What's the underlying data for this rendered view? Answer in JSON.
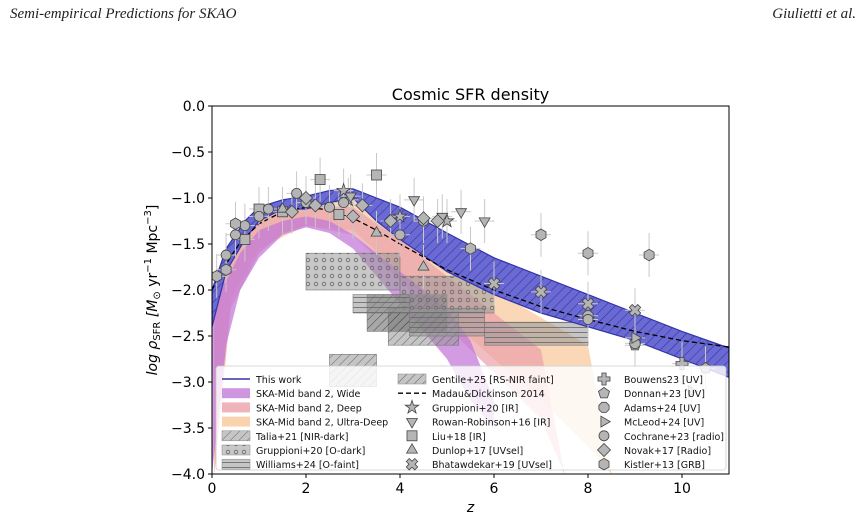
{
  "header": {
    "left": "Semi-empirical Predictions for SKAO",
    "right": "Giulietti et al."
  },
  "chart_data": {
    "type": "scatter",
    "title": "Cosmic SFR density",
    "xlabel": "z",
    "ylabel_parts": [
      "log ρ",
      "SFR",
      " [M",
      "⊙",
      " yr",
      "−1",
      " Mpc",
      "−3",
      "]"
    ],
    "xlim": [
      0,
      11
    ],
    "ylim": [
      -4.0,
      0.0
    ],
    "xticks": [
      0,
      2,
      4,
      6,
      8,
      10
    ],
    "yticks": [
      0.0,
      -0.5,
      -1.0,
      -1.5,
      -2.0,
      -2.5,
      -3.0,
      -3.5,
      -4.0
    ],
    "ytick_labels": [
      "0.0",
      "−0.5",
      "−1.0",
      "−1.5",
      "−2.0",
      "−2.5",
      "−3.0",
      "−3.5",
      "−4.0"
    ],
    "colors": {
      "this_work": "#3333aa",
      "this_work_fill": "#6a6ad2",
      "wide": "#c37ad8",
      "deep": "#eba0a8",
      "ultra": "#f8c898",
      "marker_fill": "#b5b5b5",
      "marker_edge": "#444444",
      "errbar": "#c8c8c8"
    },
    "this_work_band": {
      "x": [
        0,
        0.3,
        0.7,
        1.0,
        1.5,
        2.0,
        2.5,
        3.0,
        3.5,
        4.0,
        5.0,
        6.0,
        7.0,
        8.0,
        9.0,
        10.0,
        11.0
      ],
      "upper": [
        -2.0,
        -1.55,
        -1.25,
        -1.1,
        -1.02,
        -0.98,
        -0.92,
        -0.9,
        -1.0,
        -1.1,
        -1.38,
        -1.65,
        -1.85,
        -2.05,
        -2.25,
        -2.45,
        -2.63
      ],
      "lower": [
        -2.4,
        -1.8,
        -1.45,
        -1.25,
        -1.12,
        -1.12,
        -1.05,
        -1.0,
        -1.25,
        -1.45,
        -1.8,
        -2.05,
        -2.25,
        -2.4,
        -2.55,
        -2.75,
        -2.95
      ]
    },
    "wide_band": {
      "x": [
        0.0,
        0.3,
        0.6,
        1.0,
        1.5,
        2.0,
        2.5,
        3.0,
        4.0,
        5.0,
        5.5,
        6.0
      ],
      "upper": [
        -2.05,
        -1.9,
        -1.6,
        -1.35,
        -1.25,
        -1.2,
        -1.25,
        -1.4,
        -1.8,
        -2.2,
        -2.55,
        -3.2
      ],
      "lower": [
        -4.0,
        -2.6,
        -2.0,
        -1.65,
        -1.4,
        -1.32,
        -1.38,
        -1.55,
        -2.15,
        -2.75,
        -3.2,
        -3.5
      ]
    },
    "deep_band": {
      "x": [
        0.05,
        0.4,
        1.0,
        1.5,
        2.0,
        3.0,
        4.0,
        5.0,
        6.0,
        7.0,
        7.5
      ],
      "upper": [
        -1.9,
        -1.55,
        -1.2,
        -1.1,
        -1.08,
        -1.1,
        -1.45,
        -1.85,
        -2.25,
        -2.65,
        -4.0
      ],
      "lower": [
        -4.0,
        -2.2,
        -1.6,
        -1.38,
        -1.3,
        -1.4,
        -1.9,
        -2.4,
        -2.9,
        -3.4,
        -4.0
      ]
    },
    "ultra_band": {
      "x": [
        0.05,
        0.4,
        1.0,
        2.0,
        3.0,
        4.0,
        5.0,
        6.0,
        7.0,
        8.0,
        8.5
      ],
      "upper": [
        -1.85,
        -1.5,
        -1.15,
        -1.0,
        -1.0,
        -1.3,
        -1.65,
        -2.0,
        -2.3,
        -2.6,
        -4.0
      ],
      "lower": [
        -4.0,
        -2.1,
        -1.55,
        -1.3,
        -1.35,
        -1.8,
        -2.3,
        -2.75,
        -3.2,
        -3.7,
        -4.0
      ]
    },
    "madau_curve": {
      "x": [
        0,
        0.3,
        0.6,
        1.0,
        1.5,
        2.0,
        2.5,
        3.0,
        3.5,
        4.0,
        5.0,
        6.0,
        7.0,
        8.0,
        9.0,
        10.0,
        11.0
      ],
      "y": [
        -2.0,
        -1.72,
        -1.48,
        -1.28,
        -1.15,
        -1.1,
        -1.13,
        -1.22,
        -1.35,
        -1.5,
        -1.78,
        -2.0,
        -2.18,
        -2.32,
        -2.45,
        -2.55,
        -2.62
      ]
    },
    "rects": [
      {
        "series": "Gentile+25 [RS-NIR faint]",
        "x0": 3.75,
        "x1": 5.25,
        "y0": -2.2,
        "y1": -2.6,
        "style": "hatch-diag"
      },
      {
        "series": "Talia+21 [NIR-dark]",
        "x0": 2.5,
        "x1": 3.5,
        "y0": -2.7,
        "y1": -3.05,
        "style": "hatch-diag"
      },
      {
        "series": "Talia+21 [NIR-dark]",
        "x0": 3.3,
        "x1": 5.0,
        "y0": -2.05,
        "y1": -2.45,
        "style": "hatch-diag-dark"
      },
      {
        "series": "Gruppioni+20 [O-dark]",
        "x0": 2.0,
        "x1": 4.0,
        "y0": -1.6,
        "y1": -2.0,
        "style": "dots"
      },
      {
        "series": "Gruppioni+20 [O-dark]",
        "x0": 4.0,
        "x1": 6.0,
        "y0": -1.85,
        "y1": -2.25,
        "style": "dots"
      },
      {
        "series": "Williams+24 [O-faint]",
        "x0": 3.0,
        "x1": 4.2,
        "y0": -2.05,
        "y1": -2.25,
        "style": "hlines"
      },
      {
        "series": "Williams+24 [O-faint]",
        "x0": 4.2,
        "x1": 5.8,
        "y0": -2.2,
        "y1": -2.5,
        "style": "hlines"
      },
      {
        "series": "Williams+24 [O-faint]",
        "x0": 5.8,
        "x1": 8.0,
        "y0": -2.35,
        "y1": -2.6,
        "style": "hlines"
      }
    ],
    "points": [
      {
        "series": "Gruppioni+20 [IR]",
        "m": "star",
        "pts": [
          [
            2.8,
            -0.92
          ],
          [
            4.0,
            -1.2
          ],
          [
            2.9,
            -1.02
          ],
          [
            5.0,
            -1.25
          ]
        ]
      },
      {
        "series": "Rowan-Robinson+16 [IR]",
        "m": "tri-down",
        "pts": [
          [
            4.3,
            -1.02
          ],
          [
            4.9,
            -1.2
          ],
          [
            5.3,
            -1.15
          ],
          [
            5.8,
            -1.25
          ],
          [
            2.95,
            -0.98
          ]
        ]
      },
      {
        "series": "Liu+18 [IR]",
        "m": "square",
        "pts": [
          [
            2.3,
            -0.8
          ],
          [
            3.5,
            -0.75
          ],
          [
            0.7,
            -1.45
          ],
          [
            1.5,
            -1.15
          ],
          [
            1.0,
            -1.12
          ],
          [
            2.7,
            -1.18
          ]
        ]
      },
      {
        "series": "Dunlop+17 [UVsel]",
        "m": "tri-up",
        "pts": [
          [
            1.5,
            -1.12
          ],
          [
            3.5,
            -1.38
          ],
          [
            4.5,
            -1.75
          ]
        ]
      },
      {
        "series": "Bhatawdekar+19 [UVsel]",
        "m": "x",
        "pts": [
          [
            6.0,
            -1.93
          ],
          [
            7.0,
            -2.02
          ],
          [
            8.0,
            -2.15
          ],
          [
            9.0,
            -2.22
          ]
        ]
      },
      {
        "series": "Bouwens23 [UV]",
        "m": "plus",
        "pts": [
          [
            10.0,
            -2.8
          ]
        ]
      },
      {
        "series": "Donnan+23 [UV]",
        "m": "pentagon",
        "pts": [
          [
            9.0,
            -2.6
          ],
          [
            10.5,
            -2.85
          ]
        ]
      },
      {
        "series": "Adams+24 [UV]",
        "m": "octagon",
        "pts": [
          [
            8.0,
            -2.28
          ],
          [
            9.0,
            -2.58
          ]
        ]
      },
      {
        "series": "McLeod+24 [UV]",
        "m": "tri-right",
        "pts": [
          [
            10.2,
            -3.1
          ],
          [
            9.0,
            -2.52
          ]
        ]
      },
      {
        "series": "Cochrane+23 [radio]",
        "m": "circle",
        "pts": [
          [
            0.5,
            -1.4
          ],
          [
            0.3,
            -1.62
          ],
          [
            0.7,
            -1.3
          ],
          [
            1.0,
            -1.2
          ],
          [
            1.2,
            -1.12
          ],
          [
            1.8,
            -0.95
          ],
          [
            2.0,
            -1.05
          ],
          [
            2.5,
            -1.1
          ],
          [
            2.8,
            -1.05
          ],
          [
            4.0,
            -1.4
          ],
          [
            4.5,
            -1.25
          ],
          [
            8.0,
            -2.32
          ]
        ]
      },
      {
        "series": "Novak+17 [Radio]",
        "m": "diamond",
        "pts": [
          [
            1.7,
            -1.15
          ],
          [
            2.2,
            -1.08
          ],
          [
            3.0,
            -1.2
          ],
          [
            3.2,
            -1.08
          ],
          [
            3.8,
            -1.25
          ],
          [
            4.5,
            -1.22
          ],
          [
            4.8,
            -1.25
          ],
          [
            2.0,
            -1.0
          ]
        ]
      },
      {
        "series": "Kistler+13 [GRB]",
        "m": "hexagon",
        "pts": [
          [
            5.5,
            -1.55
          ],
          [
            7.0,
            -1.4
          ],
          [
            8.0,
            -1.6
          ],
          [
            9.3,
            -1.62
          ],
          [
            0.5,
            -1.28
          ],
          [
            0.1,
            -1.85
          ],
          [
            0.3,
            -1.78
          ]
        ]
      }
    ],
    "legend": {
      "placement": "lower-left",
      "columns": [
        [
          {
            "label": "This work",
            "sym": "line-blue"
          },
          {
            "label": "SKA-Mid band 2, Wide",
            "sym": "patch-wide"
          },
          {
            "label": "SKA-Mid band 2, Deep",
            "sym": "patch-deep"
          },
          {
            "label": "SKA-Mid band 2, Ultra-Deep",
            "sym": "patch-ultra"
          },
          {
            "label": "Talia+21 [NIR-dark]",
            "sym": "patch-hatch"
          },
          {
            "label": "Gruppioni+20 [O-dark]",
            "sym": "patch-dots"
          },
          {
            "label": "Williams+24 [O-faint]",
            "sym": "patch-hlines"
          }
        ],
        [
          {
            "label": "Gentile+25 [RS-NIR faint]",
            "sym": "patch-hatch"
          },
          {
            "label": "Madau&Dickinson 2014",
            "sym": "line-dash"
          },
          {
            "label": "Gruppioni+20 [IR]",
            "sym": "star"
          },
          {
            "label": "Rowan-Robinson+16 [IR]",
            "sym": "tri-down"
          },
          {
            "label": "Liu+18 [IR]",
            "sym": "square"
          },
          {
            "label": "Dunlop+17 [UVsel]",
            "sym": "tri-up"
          },
          {
            "label": "Bhatawdekar+19 [UVsel]",
            "sym": "x"
          }
        ],
        [
          {
            "label": "Bouwens23 [UV]",
            "sym": "plus"
          },
          {
            "label": "Donnan+23 [UV]",
            "sym": "pentagon"
          },
          {
            "label": "Adams+24 [UV]",
            "sym": "octagon"
          },
          {
            "label": "McLeod+24 [UV]",
            "sym": "tri-right"
          },
          {
            "label": "Cochrane+23 [radio]",
            "sym": "circle"
          },
          {
            "label": "Novak+17 [Radio]",
            "sym": "diamond"
          },
          {
            "label": "Kistler+13 [GRB]",
            "sym": "hexagon"
          }
        ]
      ]
    }
  }
}
